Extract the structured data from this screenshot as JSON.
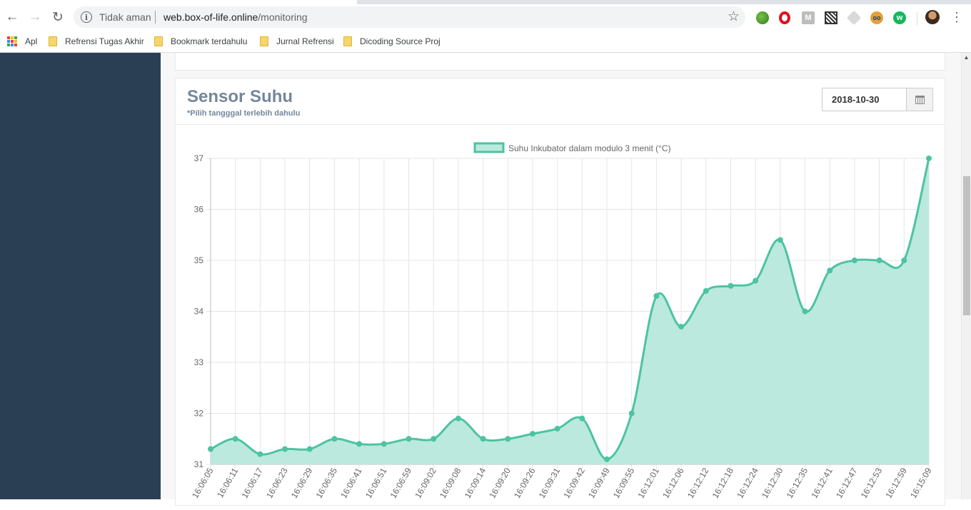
{
  "browser": {
    "security_text": "Tidak aman",
    "url_domain": "web.box-of-life.online",
    "url_path": "/monitoring",
    "bookmarks": [
      {
        "label": "Apl",
        "icon": "apps-icon"
      },
      {
        "label": "Refrensi Tugas Akhir",
        "icon": "folder-icon"
      },
      {
        "label": "Bookmark terdahulu",
        "icon": "folder-icon"
      },
      {
        "label": "Jurnal Refrensi",
        "icon": "folder-icon"
      },
      {
        "label": "Dicoding Source Proj",
        "icon": "folder-icon"
      }
    ],
    "extension_icons": [
      "globe-icon",
      "opera-icon",
      "mail-icon",
      "qr-icon",
      "cube-icon",
      "owl-icon",
      "green-circle-icon"
    ]
  },
  "panel": {
    "title": "Sensor Suhu",
    "subtitle": "*Pilih tangggal terlebih dahulu",
    "date_value": "2018-10-30"
  },
  "colors": {
    "sidebar": "#2a3f54",
    "series_line": "#4cc3a3",
    "series_fill": "#bbe9dd",
    "heading": "#73879c"
  },
  "chart_data": {
    "type": "line",
    "legend": "Suhu Inkubator dalam modulo 3 menit (°C)",
    "legend_position": "top",
    "grid": true,
    "fill": true,
    "ylim": [
      31,
      37
    ],
    "y_ticks": [
      31,
      32,
      33,
      34,
      35,
      36,
      37
    ],
    "categories": [
      "16:06:05",
      "16:06:11",
      "16:06:17",
      "16:06:23",
      "16:06:29",
      "16:06:35",
      "16:06:41",
      "16:06:51",
      "16:06:59",
      "16:09:02",
      "16:09:08",
      "16:09:14",
      "16:09:20",
      "16:09:26",
      "16:09:31",
      "16:09:42",
      "16:09:49",
      "16:09:55",
      "16:12:01",
      "16:12:06",
      "16:12:12",
      "16:12:18",
      "16:12:24",
      "16:12:30",
      "16:12:35",
      "16:12:41",
      "16:12:47",
      "16:12:53",
      "16:12:59",
      "16:15:09"
    ],
    "series": [
      {
        "name": "Suhu Inkubator dalam modulo 3 menit (°C)",
        "values": [
          31.3,
          31.5,
          31.2,
          31.3,
          31.3,
          31.5,
          31.4,
          31.4,
          31.5,
          31.5,
          31.9,
          31.5,
          31.5,
          31.6,
          31.7,
          31.9,
          31.1,
          32.0,
          34.3,
          33.7,
          34.4,
          34.5,
          34.6,
          35.4,
          34.0,
          34.8,
          35.0,
          35.0,
          35.0,
          37.0
        ]
      }
    ]
  }
}
